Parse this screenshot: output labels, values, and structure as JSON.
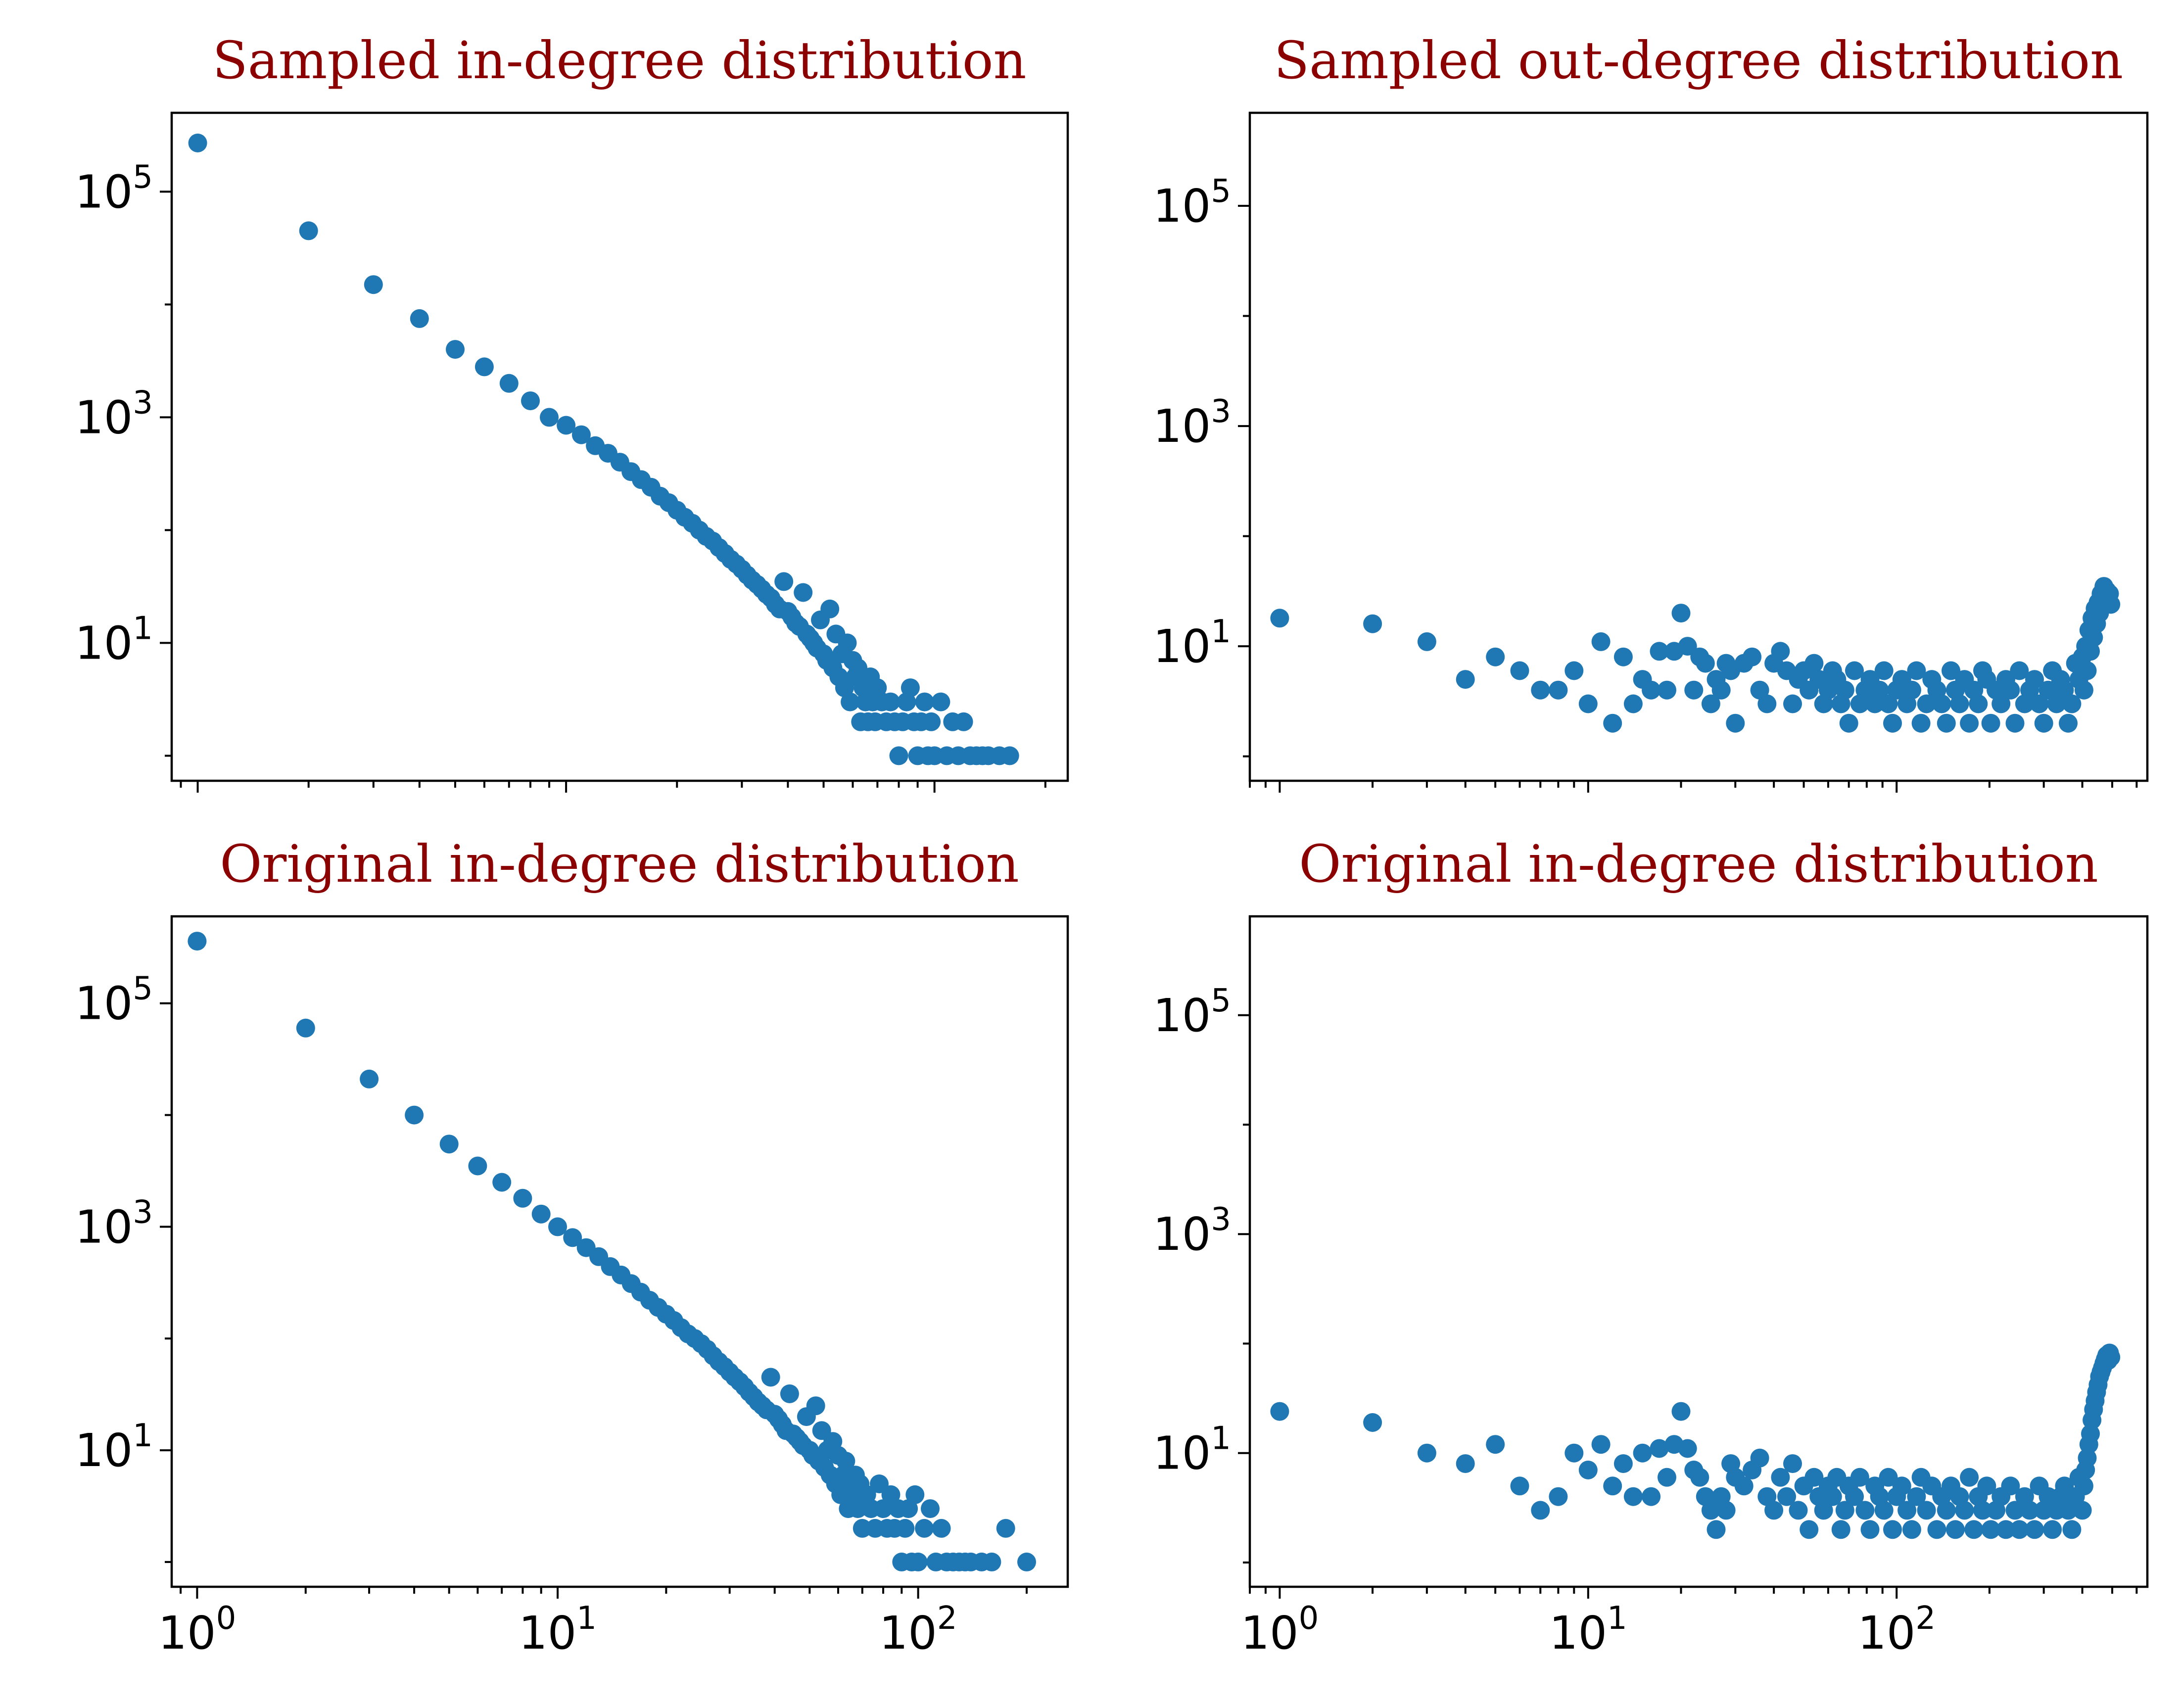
{
  "chart_data": [
    {
      "type": "scatter",
      "title": "Sampled in-degree distribution",
      "xscale": "log",
      "yscale": "log",
      "xlim": [
        0.85,
        230
      ],
      "ylim": [
        0.6,
        500000
      ],
      "xticks": [
        {
          "base": "10",
          "exp": "0"
        },
        {
          "base": "10",
          "exp": "1"
        },
        {
          "base": "10",
          "exp": "2"
        }
      ],
      "xtick_labels_visible": false,
      "yticks": [
        {
          "base": "10",
          "exp": "1"
        },
        {
          "base": "10",
          "exp": "3"
        },
        {
          "base": "10",
          "exp": "5"
        }
      ],
      "color": "#1f77b4",
      "x": [
        1,
        2,
        3,
        4,
        5,
        6,
        7,
        8,
        9,
        10,
        11,
        12,
        13,
        14,
        15,
        16,
        17,
        18,
        19,
        20,
        21,
        22,
        23,
        24,
        25,
        26,
        27,
        28,
        29,
        30,
        31,
        32,
        33,
        34,
        35,
        36,
        37,
        38,
        39,
        40,
        41,
        42,
        43,
        44,
        45,
        46,
        47,
        48,
        49,
        50,
        51,
        52,
        53,
        54,
        55,
        56,
        57,
        58,
        59,
        60,
        61,
        62,
        63,
        64,
        65,
        66,
        67,
        68,
        69,
        70,
        72,
        74,
        76,
        78,
        80,
        82,
        84,
        86,
        88,
        90,
        92,
        94,
        96,
        98,
        100,
        104,
        108,
        112,
        116,
        120,
        125,
        130,
        135,
        140,
        150,
        160
      ],
      "y": [
        270000,
        45000,
        15000,
        7500,
        4000,
        2800,
        2000,
        1400,
        1000,
        850,
        700,
        560,
        480,
        400,
        330,
        280,
        240,
        200,
        175,
        150,
        130,
        115,
        100,
        88,
        80,
        70,
        62,
        55,
        50,
        45,
        40,
        36,
        33,
        30,
        27,
        25,
        22,
        20,
        35,
        19,
        17,
        15,
        14,
        28,
        12,
        11,
        10,
        9,
        16,
        8,
        7,
        20,
        6,
        12,
        5,
        8,
        4,
        10,
        3,
        7,
        5,
        6,
        2,
        4,
        3,
        2,
        5,
        3,
        2,
        4,
        3,
        2,
        3,
        2,
        1,
        2,
        3,
        4,
        2,
        1,
        2,
        3,
        1,
        2,
        1,
        3,
        1,
        2,
        1,
        2,
        1,
        1,
        1,
        1,
        1,
        1
      ]
    },
    {
      "type": "scatter",
      "title": "Sampled out-degree distribution",
      "xscale": "log",
      "yscale": "log",
      "xlim": [
        0.8,
        650
      ],
      "ylim": [
        0.6,
        700000
      ],
      "xticks": [
        {
          "base": "10",
          "exp": "0"
        },
        {
          "base": "10",
          "exp": "1"
        },
        {
          "base": "10",
          "exp": "2"
        }
      ],
      "xtick_labels_visible": false,
      "yticks": [
        {
          "base": "10",
          "exp": "1"
        },
        {
          "base": "10",
          "exp": "3"
        },
        {
          "base": "10",
          "exp": "5"
        }
      ],
      "color": "#1f77b4",
      "x": [
        1,
        2,
        3,
        4,
        5,
        6,
        7,
        8,
        9,
        10,
        11,
        12,
        13,
        14,
        15,
        16,
        17,
        18,
        19,
        20,
        21,
        22,
        23,
        24,
        25,
        26,
        27,
        28,
        29,
        30,
        32,
        34,
        36,
        38,
        40,
        42,
        44,
        46,
        48,
        50,
        52,
        54,
        56,
        58,
        60,
        62,
        64,
        66,
        68,
        70,
        73,
        76,
        79,
        82,
        85,
        88,
        91,
        94,
        97,
        100,
        104,
        108,
        112,
        116,
        120,
        125,
        130,
        135,
        140,
        145,
        150,
        155,
        160,
        166,
        172,
        178,
        184,
        190,
        196,
        202,
        210,
        218,
        226,
        234,
        242,
        250,
        260,
        270,
        280,
        290,
        300,
        310,
        320,
        330,
        340,
        350,
        360,
        370,
        380,
        390,
        400,
        405,
        410,
        415,
        420,
        425,
        430,
        435,
        440,
        445,
        450,
        455,
        460,
        465,
        470,
        475,
        480,
        485,
        490,
        495
      ],
      "y": [
        18,
        16,
        11,
        5,
        8,
        6,
        4,
        4,
        6,
        3,
        11,
        2,
        8,
        3,
        5,
        4,
        9,
        4,
        9,
        20,
        10,
        4,
        8,
        7,
        3,
        5,
        4,
        7,
        6,
        2,
        7,
        8,
        4,
        3,
        7,
        9,
        6,
        3,
        5,
        6,
        4,
        7,
        5,
        3,
        4,
        6,
        5,
        3,
        4,
        2,
        6,
        3,
        4,
        5,
        3,
        4,
        6,
        3,
        2,
        4,
        5,
        3,
        4,
        6,
        2,
        3,
        5,
        4,
        3,
        2,
        6,
        4,
        3,
        5,
        2,
        4,
        3,
        6,
        5,
        2,
        4,
        3,
        5,
        4,
        2,
        6,
        3,
        4,
        5,
        3,
        2,
        4,
        6,
        3,
        5,
        4,
        2,
        3,
        7,
        5,
        8,
        4,
        10,
        6,
        14,
        9,
        18,
        12,
        22,
        16,
        25,
        20,
        30,
        24,
        35,
        28,
        32,
        26,
        30,
        24
      ]
    },
    {
      "type": "scatter",
      "title": "Original in-degree distribution",
      "xscale": "log",
      "yscale": "log",
      "xlim": [
        0.85,
        260
      ],
      "ylim": [
        0.6,
        600000
      ],
      "xticks": [
        {
          "base": "10",
          "exp": "0"
        },
        {
          "base": "10",
          "exp": "1"
        },
        {
          "base": "10",
          "exp": "2"
        }
      ],
      "xtick_labels_visible": true,
      "yticks": [
        {
          "base": "10",
          "exp": "1"
        },
        {
          "base": "10",
          "exp": "3"
        },
        {
          "base": "10",
          "exp": "5"
        }
      ],
      "color": "#1f77b4",
      "x": [
        1,
        2,
        3,
        4,
        5,
        6,
        7,
        8,
        9,
        10,
        11,
        12,
        13,
        14,
        15,
        16,
        17,
        18,
        19,
        20,
        21,
        22,
        23,
        24,
        25,
        26,
        27,
        28,
        29,
        30,
        31,
        32,
        33,
        34,
        35,
        36,
        37,
        38,
        39,
        40,
        41,
        42,
        43,
        44,
        45,
        46,
        47,
        48,
        49,
        50,
        51,
        52,
        53,
        54,
        55,
        56,
        57,
        58,
        59,
        60,
        61,
        62,
        63,
        64,
        65,
        66,
        67,
        68,
        69,
        70,
        72,
        74,
        76,
        78,
        80,
        82,
        84,
        86,
        88,
        90,
        92,
        94,
        96,
        98,
        100,
        104,
        108,
        112,
        116,
        120,
        125,
        130,
        135,
        140,
        150,
        160,
        175,
        200
      ],
      "y": [
        360000,
        60000,
        21000,
        10000,
        5500,
        3500,
        2500,
        1800,
        1300,
        1000,
        800,
        650,
        540,
        440,
        370,
        310,
        260,
        220,
        190,
        165,
        145,
        125,
        110,
        100,
        90,
        80,
        70,
        62,
        56,
        50,
        45,
        41,
        37,
        33,
        30,
        27,
        25,
        23,
        45,
        21,
        19,
        17,
        15,
        32,
        14,
        13,
        12,
        11,
        20,
        10,
        9,
        25,
        8,
        15,
        7,
        10,
        6,
        12,
        5,
        9,
        4,
        6,
        8,
        3,
        5,
        4,
        6,
        3,
        5,
        2,
        4,
        3,
        2,
        5,
        3,
        2,
        4,
        2,
        3,
        1,
        2,
        3,
        1,
        4,
        1,
        2,
        3,
        1,
        2,
        1,
        1,
        1,
        1,
        1,
        1,
        1,
        2,
        1
      ]
    },
    {
      "type": "scatter",
      "title": "Original in-degree distribution",
      "xscale": "log",
      "yscale": "log",
      "xlim": [
        0.8,
        650
      ],
      "ylim": [
        0.6,
        800000
      ],
      "xticks": [
        {
          "base": "10",
          "exp": "0"
        },
        {
          "base": "10",
          "exp": "1"
        },
        {
          "base": "10",
          "exp": "2"
        }
      ],
      "xtick_labels_visible": true,
      "yticks": [
        {
          "base": "10",
          "exp": "1"
        },
        {
          "base": "10",
          "exp": "3"
        },
        {
          "base": "10",
          "exp": "5"
        }
      ],
      "color": "#1f77b4",
      "x": [
        1,
        2,
        3,
        4,
        5,
        6,
        7,
        8,
        9,
        10,
        11,
        12,
        13,
        14,
        15,
        16,
        17,
        18,
        19,
        20,
        21,
        22,
        23,
        24,
        25,
        26,
        27,
        28,
        29,
        30,
        32,
        34,
        36,
        38,
        40,
        42,
        44,
        46,
        48,
        50,
        52,
        54,
        56,
        58,
        60,
        62,
        64,
        66,
        68,
        70,
        73,
        76,
        79,
        82,
        85,
        88,
        91,
        94,
        97,
        100,
        104,
        108,
        112,
        116,
        120,
        125,
        130,
        135,
        140,
        145,
        150,
        155,
        160,
        166,
        172,
        178,
        184,
        190,
        196,
        202,
        210,
        218,
        226,
        234,
        242,
        250,
        260,
        270,
        280,
        290,
        300,
        310,
        320,
        330,
        340,
        350,
        360,
        370,
        380,
        390,
        400,
        405,
        410,
        415,
        420,
        425,
        430,
        435,
        440,
        445,
        450,
        455,
        460,
        465,
        470,
        475,
        480,
        485,
        490,
        495
      ],
      "y": [
        24,
        19,
        10,
        8,
        12,
        5,
        3,
        4,
        10,
        7,
        12,
        5,
        8,
        4,
        10,
        4,
        11,
        6,
        12,
        24,
        11,
        7,
        6,
        4,
        3,
        2,
        4,
        3,
        8,
        6,
        5,
        7,
        9,
        4,
        3,
        6,
        4,
        8,
        3,
        5,
        2,
        6,
        4,
        3,
        5,
        4,
        6,
        2,
        3,
        5,
        4,
        6,
        3,
        2,
        5,
        4,
        3,
        6,
        2,
        4,
        5,
        3,
        2,
        4,
        6,
        3,
        5,
        2,
        4,
        3,
        5,
        2,
        4,
        3,
        6,
        2,
        4,
        3,
        5,
        2,
        3,
        4,
        2,
        5,
        3,
        2,
        4,
        3,
        2,
        5,
        3,
        4,
        2,
        3,
        4,
        5,
        3,
        2,
        4,
        6,
        3,
        5,
        7,
        9,
        12,
        15,
        20,
        25,
        30,
        36,
        42,
        50,
        55,
        60,
        66,
        72,
        78,
        70,
        82,
        75
      ]
    }
  ]
}
